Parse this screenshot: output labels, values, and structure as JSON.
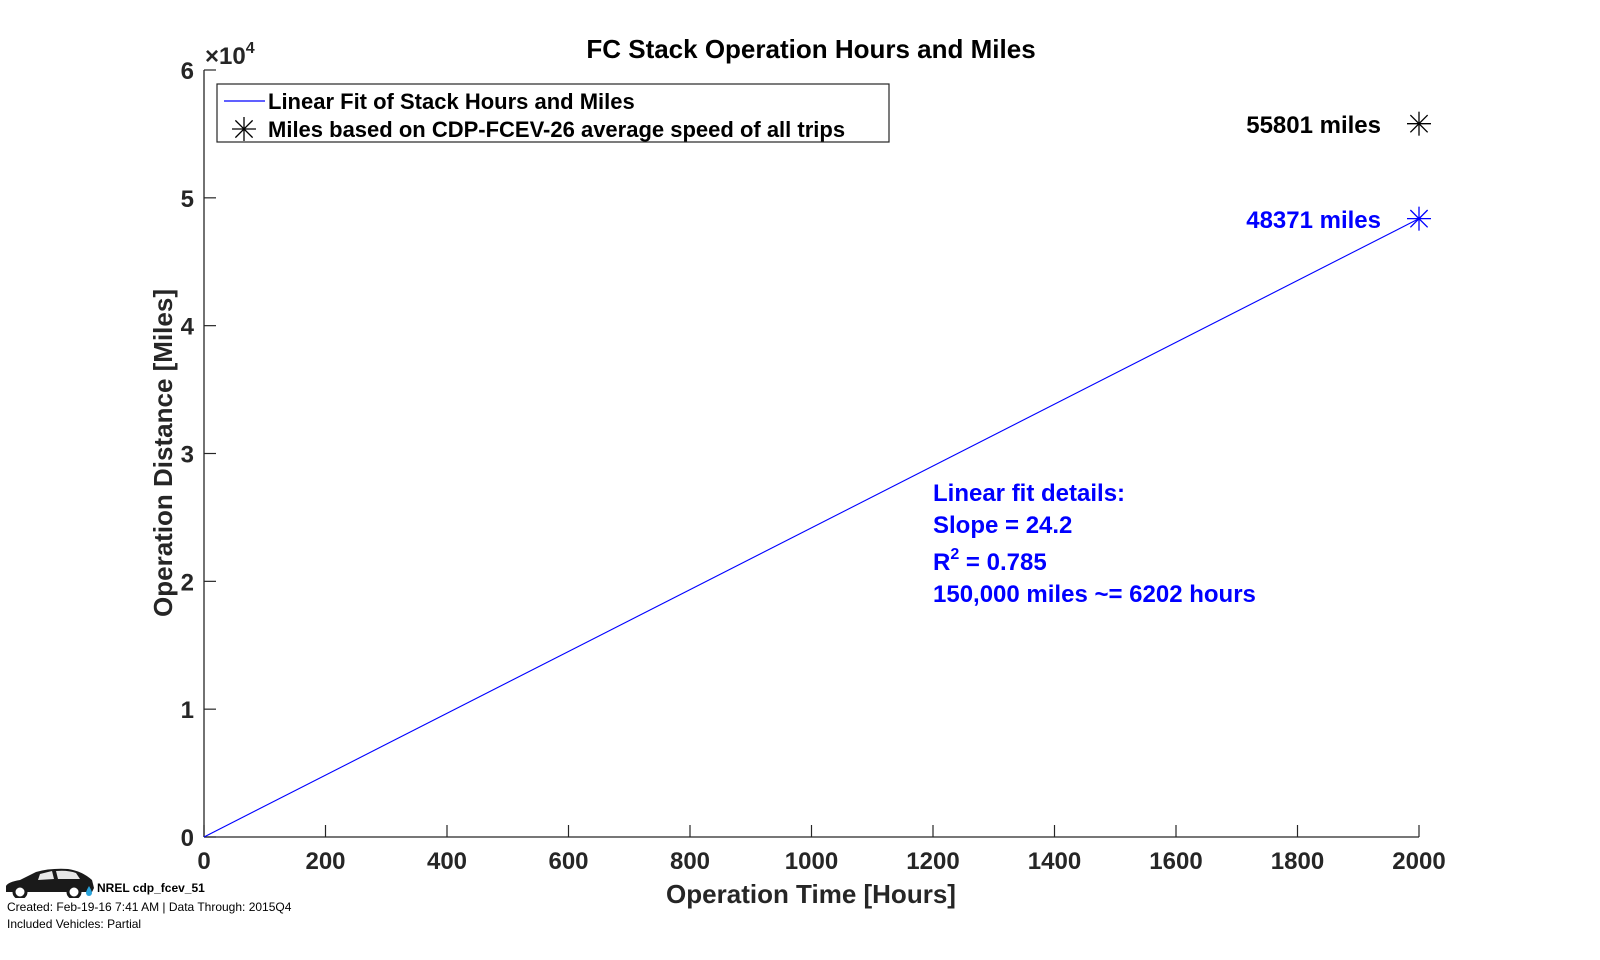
{
  "chart_data": {
    "type": "line",
    "title": "FC Stack Operation Hours and Miles",
    "xlabel": "Operation Time [Hours]",
    "ylabel": "Operation Distance [Miles]",
    "xlim": [
      0,
      2000
    ],
    "ylim": [
      0,
      60000
    ],
    "y_exponent_label": "×10",
    "y_exponent_power": "4",
    "x_ticks": [
      0,
      200,
      400,
      600,
      800,
      1000,
      1200,
      1400,
      1600,
      1800,
      2000
    ],
    "x_tick_labels": [
      "0",
      "200",
      "400",
      "600",
      "800",
      "1000",
      "1200",
      "1400",
      "1600",
      "1800",
      "2000"
    ],
    "y_ticks": [
      0,
      10000,
      20000,
      30000,
      40000,
      50000,
      60000
    ],
    "y_tick_labels": [
      "0",
      "1",
      "2",
      "3",
      "4",
      "5",
      "6"
    ],
    "grid": false,
    "legend_position": "top-left",
    "series": [
      {
        "name": "Linear Fit of Stack Hours and Miles",
        "kind": "line",
        "color": "#0000ff",
        "x": [
          0,
          2000
        ],
        "y": [
          0,
          48371
        ]
      },
      {
        "name": "Miles based on CDP-FCEV-26 average speed of all trips",
        "kind": "marker",
        "marker": "asterisk",
        "points": [
          {
            "x": 2000,
            "y": 55801,
            "label": "55801 miles",
            "color": "#000000"
          },
          {
            "x": 2000,
            "y": 48371,
            "label": "48371 miles",
            "color": "#0000ff"
          }
        ]
      }
    ],
    "annotation": {
      "color": "#0000ff",
      "lines": [
        "Linear fit details:",
        "Slope = 24.2",
        "R",
        "150,000 miles ~= 6202 hours"
      ],
      "r2_sup": "2",
      "r2_value": " = 0.785"
    }
  },
  "footer": {
    "title": "NREL cdp_fcev_51",
    "created": "Created: Feb-19-16  7:41 AM | Data Through: 2015Q4",
    "included": "Included Vehicles: Partial"
  },
  "colors": {
    "axis": "#262626",
    "fit_line": "#0000ff",
    "water_drop": "#29a3db"
  }
}
